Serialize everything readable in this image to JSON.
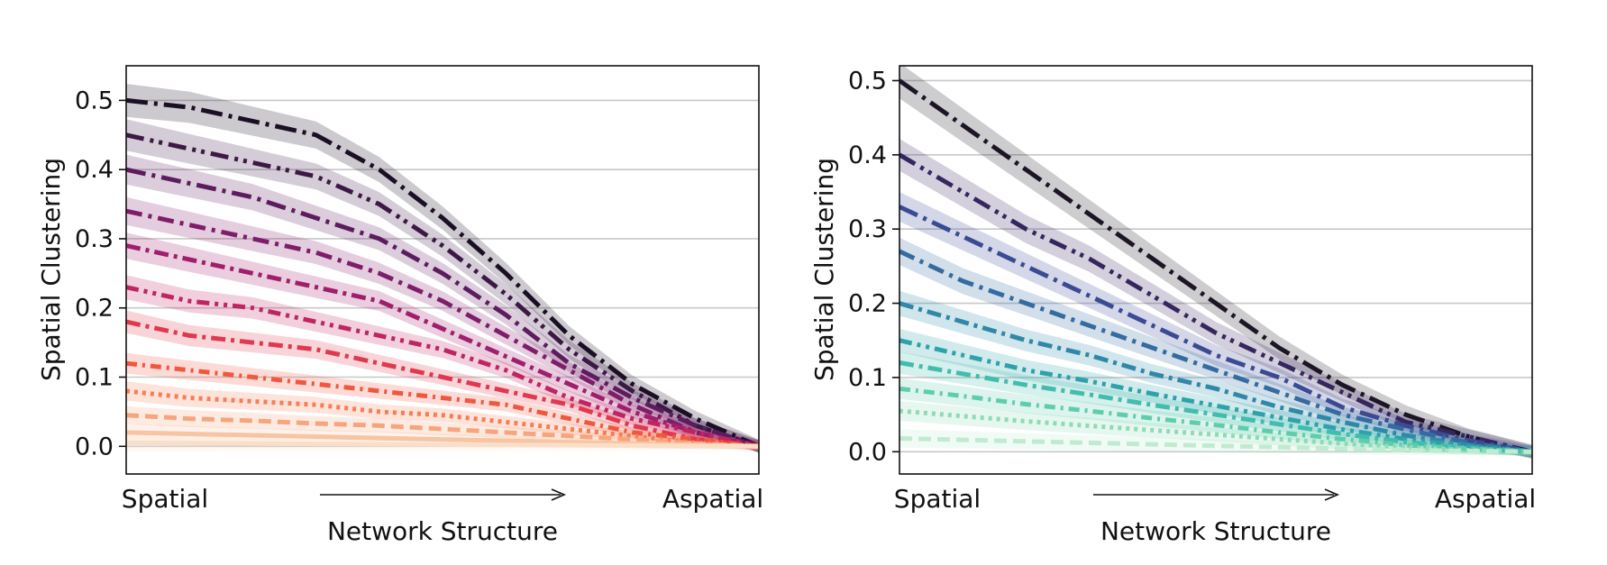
{
  "chart_data": [
    {
      "type": "line",
      "ylabel": "Spatial Clustering",
      "xlabel": "Network Structure",
      "x_start_label": "Spatial",
      "x_end_label": "Aspatial",
      "ylim": [
        -0.04,
        0.55
      ],
      "yticks": [
        "0.0",
        "0.1",
        "0.2",
        "0.3",
        "0.4",
        "0.5"
      ],
      "grid": "horizontal",
      "legend": "none",
      "x": [
        0,
        0.1,
        0.2,
        0.3,
        0.4,
        0.5,
        0.6,
        0.7,
        0.8,
        0.9,
        1.0
      ],
      "colors": [
        "#1b0f25",
        "#3d1845",
        "#5c1c5e",
        "#7e1d6a",
        "#9f1f6c",
        "#bf2463",
        "#e0394f",
        "#f0573f",
        "#f57f55",
        "#f6a57c",
        "#f7c4a4",
        "#f9dfc9"
      ],
      "series": [
        {
          "values": [
            0.5,
            0.49,
            0.47,
            0.45,
            0.4,
            0.33,
            0.25,
            0.16,
            0.09,
            0.04,
            0.0
          ]
        },
        {
          "values": [
            0.45,
            0.43,
            0.41,
            0.39,
            0.35,
            0.29,
            0.22,
            0.14,
            0.08,
            0.03,
            0.0
          ]
        },
        {
          "values": [
            0.4,
            0.38,
            0.36,
            0.33,
            0.3,
            0.25,
            0.19,
            0.12,
            0.07,
            0.03,
            0.0
          ]
        },
        {
          "values": [
            0.34,
            0.32,
            0.3,
            0.28,
            0.25,
            0.21,
            0.16,
            0.11,
            0.06,
            0.02,
            0.0
          ]
        },
        {
          "values": [
            0.29,
            0.27,
            0.25,
            0.23,
            0.21,
            0.17,
            0.13,
            0.09,
            0.05,
            0.02,
            0.0
          ]
        },
        {
          "values": [
            0.23,
            0.21,
            0.2,
            0.18,
            0.16,
            0.14,
            0.11,
            0.07,
            0.04,
            0.02,
            0.0
          ]
        },
        {
          "values": [
            0.18,
            0.16,
            0.15,
            0.14,
            0.12,
            0.1,
            0.08,
            0.06,
            0.03,
            0.01,
            0.0
          ]
        },
        {
          "values": [
            0.12,
            0.11,
            0.1,
            0.09,
            0.08,
            0.07,
            0.06,
            0.04,
            0.02,
            0.01,
            0.0
          ]
        },
        {
          "values": [
            0.08,
            0.07,
            0.065,
            0.06,
            0.05,
            0.045,
            0.035,
            0.025,
            0.015,
            0.005,
            0.0
          ]
        },
        {
          "values": [
            0.045,
            0.04,
            0.037,
            0.033,
            0.03,
            0.025,
            0.02,
            0.015,
            0.01,
            0.004,
            0.0
          ]
        },
        {
          "values": [
            0.02,
            0.018,
            0.016,
            0.014,
            0.012,
            0.01,
            0.008,
            0.006,
            0.004,
            0.002,
            0.0
          ]
        },
        {
          "values": [
            0.005,
            0.0045,
            0.004,
            0.0035,
            0.003,
            0.0025,
            0.002,
            0.0015,
            0.001,
            0.0005,
            0.0
          ]
        }
      ]
    },
    {
      "type": "line",
      "ylabel": "Spatial Clustering",
      "xlabel": "Network Structure",
      "x_start_label": "Spatial",
      "x_end_label": "Aspatial",
      "ylim": [
        -0.03,
        0.52
      ],
      "yticks": [
        "0.0",
        "0.1",
        "0.2",
        "0.3",
        "0.4",
        "0.5"
      ],
      "grid": "horizontal",
      "legend": "none",
      "x": [
        0,
        0.1,
        0.2,
        0.3,
        0.4,
        0.5,
        0.6,
        0.7,
        0.8,
        0.9,
        1.0
      ],
      "colors": [
        "#1d1526",
        "#35265e",
        "#3b4b93",
        "#346ba0",
        "#2f88a7",
        "#2ea2aa",
        "#42bcad",
        "#5fcdab",
        "#8fdbb5",
        "#c0ebd0"
      ],
      "series": [
        {
          "values": [
            0.5,
            0.44,
            0.38,
            0.32,
            0.26,
            0.2,
            0.14,
            0.09,
            0.05,
            0.02,
            0.0
          ]
        },
        {
          "values": [
            0.4,
            0.35,
            0.3,
            0.26,
            0.21,
            0.16,
            0.12,
            0.08,
            0.04,
            0.02,
            0.0
          ]
        },
        {
          "values": [
            0.33,
            0.29,
            0.25,
            0.21,
            0.17,
            0.13,
            0.1,
            0.06,
            0.035,
            0.015,
            0.0
          ]
        },
        {
          "values": [
            0.27,
            0.23,
            0.2,
            0.17,
            0.14,
            0.11,
            0.08,
            0.05,
            0.03,
            0.012,
            0.0
          ]
        },
        {
          "values": [
            0.2,
            0.175,
            0.15,
            0.13,
            0.105,
            0.085,
            0.06,
            0.04,
            0.022,
            0.009,
            0.0
          ]
        },
        {
          "values": [
            0.15,
            0.13,
            0.11,
            0.095,
            0.078,
            0.062,
            0.046,
            0.03,
            0.017,
            0.007,
            0.0
          ]
        },
        {
          "values": [
            0.12,
            0.105,
            0.09,
            0.077,
            0.063,
            0.05,
            0.037,
            0.024,
            0.013,
            0.005,
            0.0
          ]
        },
        {
          "values": [
            0.085,
            0.075,
            0.064,
            0.055,
            0.045,
            0.036,
            0.026,
            0.017,
            0.009,
            0.004,
            0.0
          ]
        },
        {
          "values": [
            0.055,
            0.048,
            0.041,
            0.035,
            0.029,
            0.023,
            0.017,
            0.011,
            0.006,
            0.002,
            0.0
          ]
        },
        {
          "values": [
            0.018,
            0.016,
            0.014,
            0.012,
            0.01,
            0.008,
            0.006,
            0.004,
            0.002,
            0.001,
            0.0
          ]
        }
      ]
    }
  ]
}
